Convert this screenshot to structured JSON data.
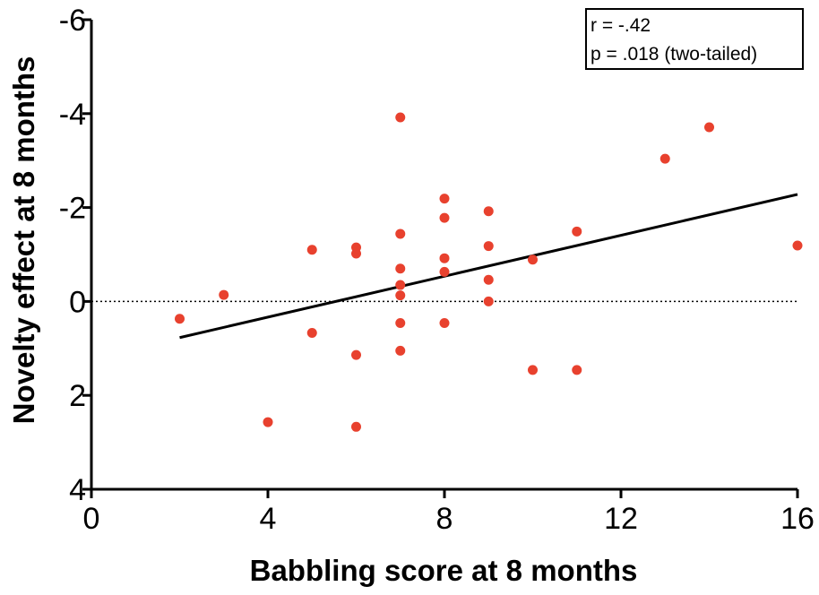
{
  "chart_data": {
    "type": "scatter",
    "xlabel": "Babbling score at 8 months",
    "ylabel": "Novelty effect at 8 months",
    "xlim": [
      0,
      16
    ],
    "ylim": [
      4,
      -6
    ],
    "y_axis_inverted": true,
    "x_ticks": [
      "0",
      "4",
      "8",
      "12",
      "16"
    ],
    "y_ticks": [
      "-6",
      "-4",
      "-2",
      "0",
      "2",
      "4"
    ],
    "x_tick_values": [
      0,
      4,
      8,
      12,
      16
    ],
    "y_tick_values": [
      -6,
      -4,
      -2,
      0,
      2,
      4
    ],
    "point_color": "#e8412e",
    "points": [
      {
        "x": 2,
        "y": 0.37
      },
      {
        "x": 3,
        "y": -0.14
      },
      {
        "x": 4,
        "y": 2.57
      },
      {
        "x": 5,
        "y": -1.1
      },
      {
        "x": 5,
        "y": 0.67
      },
      {
        "x": 6,
        "y": -1.15
      },
      {
        "x": 6,
        "y": -1.02
      },
      {
        "x": 6,
        "y": 1.14
      },
      {
        "x": 6,
        "y": 2.67
      },
      {
        "x": 7,
        "y": -3.92
      },
      {
        "x": 7,
        "y": -1.44
      },
      {
        "x": 7,
        "y": -0.7
      },
      {
        "x": 7,
        "y": -0.35
      },
      {
        "x": 7,
        "y": -0.13
      },
      {
        "x": 7,
        "y": 0.46
      },
      {
        "x": 7,
        "y": 1.05
      },
      {
        "x": 8,
        "y": -2.19
      },
      {
        "x": 8,
        "y": -1.78
      },
      {
        "x": 8,
        "y": -0.92
      },
      {
        "x": 8,
        "y": -0.63
      },
      {
        "x": 8,
        "y": 0.46
      },
      {
        "x": 9,
        "y": -1.92
      },
      {
        "x": 9,
        "y": -1.18
      },
      {
        "x": 9,
        "y": -0.46
      },
      {
        "x": 9,
        "y": 0.0
      },
      {
        "x": 10,
        "y": -0.89
      },
      {
        "x": 10,
        "y": 1.46
      },
      {
        "x": 11,
        "y": -1.49
      },
      {
        "x": 11,
        "y": 1.46
      },
      {
        "x": 13,
        "y": -3.04
      },
      {
        "x": 14,
        "y": -3.71
      },
      {
        "x": 16,
        "y": -1.19
      }
    ],
    "fit_line": {
      "x": [
        2,
        16
      ],
      "y": [
        0.77,
        -2.28
      ]
    },
    "reference_line_y": 0,
    "annotation": [
      "r = -.42",
      "p = .018 (two-tailed)"
    ]
  }
}
